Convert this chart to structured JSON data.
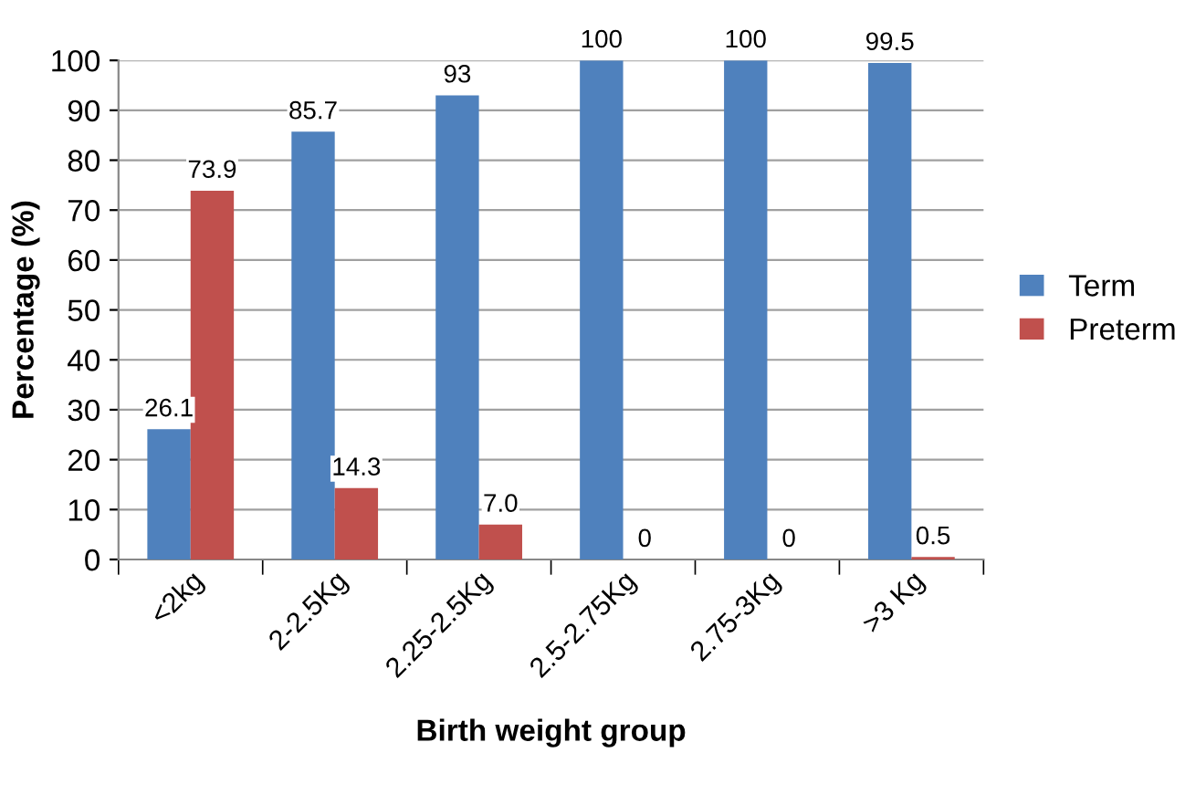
{
  "chart_data": {
    "type": "bar",
    "xlabel": "Birth weight group",
    "ylabel": "Percentage (%)",
    "categories": [
      "<2kg",
      "2-2.5Kg",
      "2.25-2.5Kg",
      "2.5-2.75Kg",
      "2.75-3Kg",
      ">3 Kg"
    ],
    "series": [
      {
        "name": "Term",
        "color": "#4f81bd",
        "values": [
          26.1,
          85.7,
          93,
          100,
          100,
          99.5
        ],
        "value_labels": [
          "26.1",
          "85.7",
          "93",
          "100",
          "100",
          "99.5"
        ]
      },
      {
        "name": "Preterm",
        "color": "#c0504d",
        "values": [
          73.9,
          14.3,
          7.0,
          0,
          0,
          0.5
        ],
        "value_labels": [
          "73.9",
          "14.3",
          "7.0",
          "0",
          "0",
          "0.5"
        ]
      }
    ],
    "ylim": [
      0,
      100
    ],
    "yticks": [
      0,
      10,
      20,
      30,
      40,
      50,
      60,
      70,
      80,
      90,
      100
    ],
    "grid": "y",
    "legend": "right"
  }
}
